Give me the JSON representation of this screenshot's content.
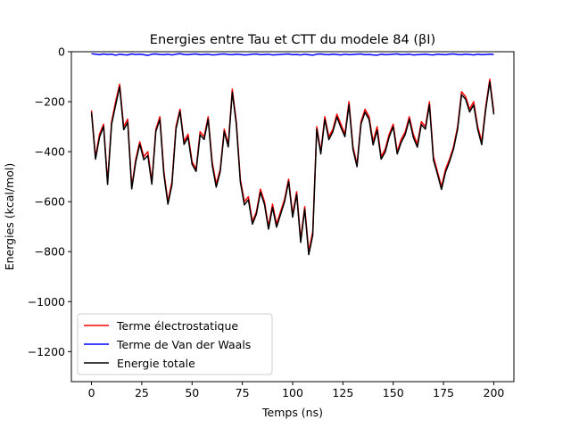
{
  "chart_data": {
    "type": "line",
    "title": "Energies entre Tau et CTT du modele 84 (βI)",
    "xlabel": "Temps (ns)",
    "ylabel": "Energies (kcal/mol)",
    "xlim": [
      -10,
      210
    ],
    "ylim": [
      -1320,
      0
    ],
    "xticks": [
      0,
      25,
      50,
      75,
      100,
      125,
      150,
      175,
      200
    ],
    "yticks": [
      0,
      -200,
      -400,
      -600,
      -800,
      -1000,
      -1200
    ],
    "grid": false,
    "legend_position": "lower-left",
    "x": [
      0,
      2,
      4,
      6,
      8,
      10,
      12,
      14,
      16,
      18,
      20,
      22,
      24,
      26,
      28,
      30,
      32,
      34,
      36,
      38,
      40,
      42,
      44,
      46,
      48,
      50,
      52,
      54,
      56,
      58,
      60,
      62,
      64,
      66,
      68,
      70,
      72,
      74,
      76,
      78,
      80,
      82,
      84,
      86,
      88,
      90,
      92,
      94,
      96,
      98,
      100,
      102,
      104,
      106,
      108,
      110,
      112,
      114,
      116,
      118,
      120,
      122,
      124,
      126,
      128,
      130,
      132,
      134,
      136,
      138,
      140,
      142,
      144,
      146,
      148,
      150,
      152,
      154,
      156,
      158,
      160,
      162,
      164,
      166,
      168,
      170,
      172,
      174,
      176,
      178,
      180,
      182,
      184,
      186,
      188,
      190,
      192,
      194,
      196,
      198,
      200
    ],
    "series": [
      {
        "name": "Terme électrostatique",
        "color": "#ff0000",
        "values": [
          -235,
          -420,
          -330,
          -290,
          -520,
          -280,
          -200,
          -130,
          -300,
          -270,
          -540,
          -430,
          -360,
          -420,
          -400,
          -520,
          -310,
          -260,
          -480,
          -600,
          -520,
          -300,
          -230,
          -360,
          -330,
          -440,
          -470,
          -320,
          -340,
          -260,
          -440,
          -530,
          -470,
          -310,
          -370,
          -150,
          -280,
          -510,
          -600,
          -580,
          -680,
          -640,
          -550,
          -600,
          -700,
          -610,
          -690,
          -640,
          -590,
          -510,
          -650,
          -560,
          -750,
          -620,
          -800,
          -720,
          -300,
          -400,
          -260,
          -340,
          -310,
          -250,
          -290,
          -330,
          -200,
          -380,
          -450,
          -280,
          -230,
          -260,
          -360,
          -300,
          -420,
          -390,
          -330,
          -290,
          -400,
          -350,
          -320,
          -260,
          -330,
          -370,
          -280,
          -300,
          -200,
          -420,
          -480,
          -540,
          -470,
          -430,
          -380,
          -300,
          -160,
          -180,
          -230,
          -200,
          -300,
          -360,
          -220,
          -110,
          -240
        ]
      },
      {
        "name": "Terme de Van der Waals",
        "color": "#0000ff",
        "values": [
          -8,
          -10,
          -12,
          -9,
          -11,
          -10,
          -14,
          -10,
          -12,
          -13,
          -9,
          -11,
          -10,
          -12,
          -15,
          -10,
          -9,
          -11,
          -12,
          -10,
          -13,
          -10,
          -8,
          -11,
          -12,
          -10,
          -9,
          -12,
          -11,
          -10,
          -13,
          -12,
          -10,
          -9,
          -11,
          -12,
          -10,
          -11,
          -13,
          -12,
          -10,
          -9,
          -12,
          -11,
          -10,
          -13,
          -12,
          -11,
          -10,
          -9,
          -12,
          -11,
          -13,
          -10,
          -12,
          -14,
          -10,
          -9,
          -11,
          -12,
          -10,
          -11,
          -13,
          -10,
          -12,
          -11,
          -10,
          -9,
          -12,
          -11,
          -13,
          -14,
          -10,
          -12,
          -11,
          -10,
          -9,
          -12,
          -11,
          -10,
          -13,
          -12,
          -11,
          -10,
          -12,
          -13,
          -10,
          -11,
          -12,
          -10,
          -9,
          -11,
          -12,
          -10,
          -11,
          -13,
          -10,
          -12,
          -11,
          -10,
          -11
        ]
      },
      {
        "name": "Energie totale",
        "color": "#000000",
        "values": [
          -243,
          -430,
          -342,
          -299,
          -531,
          -290,
          -214,
          -140,
          -312,
          -283,
          -549,
          -441,
          -370,
          -432,
          -415,
          -530,
          -319,
          -271,
          -492,
          -610,
          -533,
          -310,
          -238,
          -371,
          -342,
          -450,
          -479,
          -332,
          -351,
          -270,
          -453,
          -542,
          -480,
          -319,
          -381,
          -162,
          -290,
          -521,
          -613,
          -592,
          -690,
          -649,
          -562,
          -611,
          -710,
          -623,
          -702,
          -651,
          -600,
          -519,
          -662,
          -571,
          -763,
          -630,
          -812,
          -734,
          -310,
          -409,
          -271,
          -352,
          -320,
          -261,
          -303,
          -340,
          -212,
          -391,
          -460,
          -289,
          -242,
          -271,
          -373,
          -314,
          -430,
          -402,
          -341,
          -300,
          -409,
          -362,
          -331,
          -270,
          -343,
          -382,
          -291,
          -310,
          -212,
          -433,
          -490,
          -551,
          -482,
          -440,
          -389,
          -311,
          -172,
          -190,
          -241,
          -213,
          -310,
          -372,
          -231,
          -120,
          -251
        ]
      }
    ]
  }
}
